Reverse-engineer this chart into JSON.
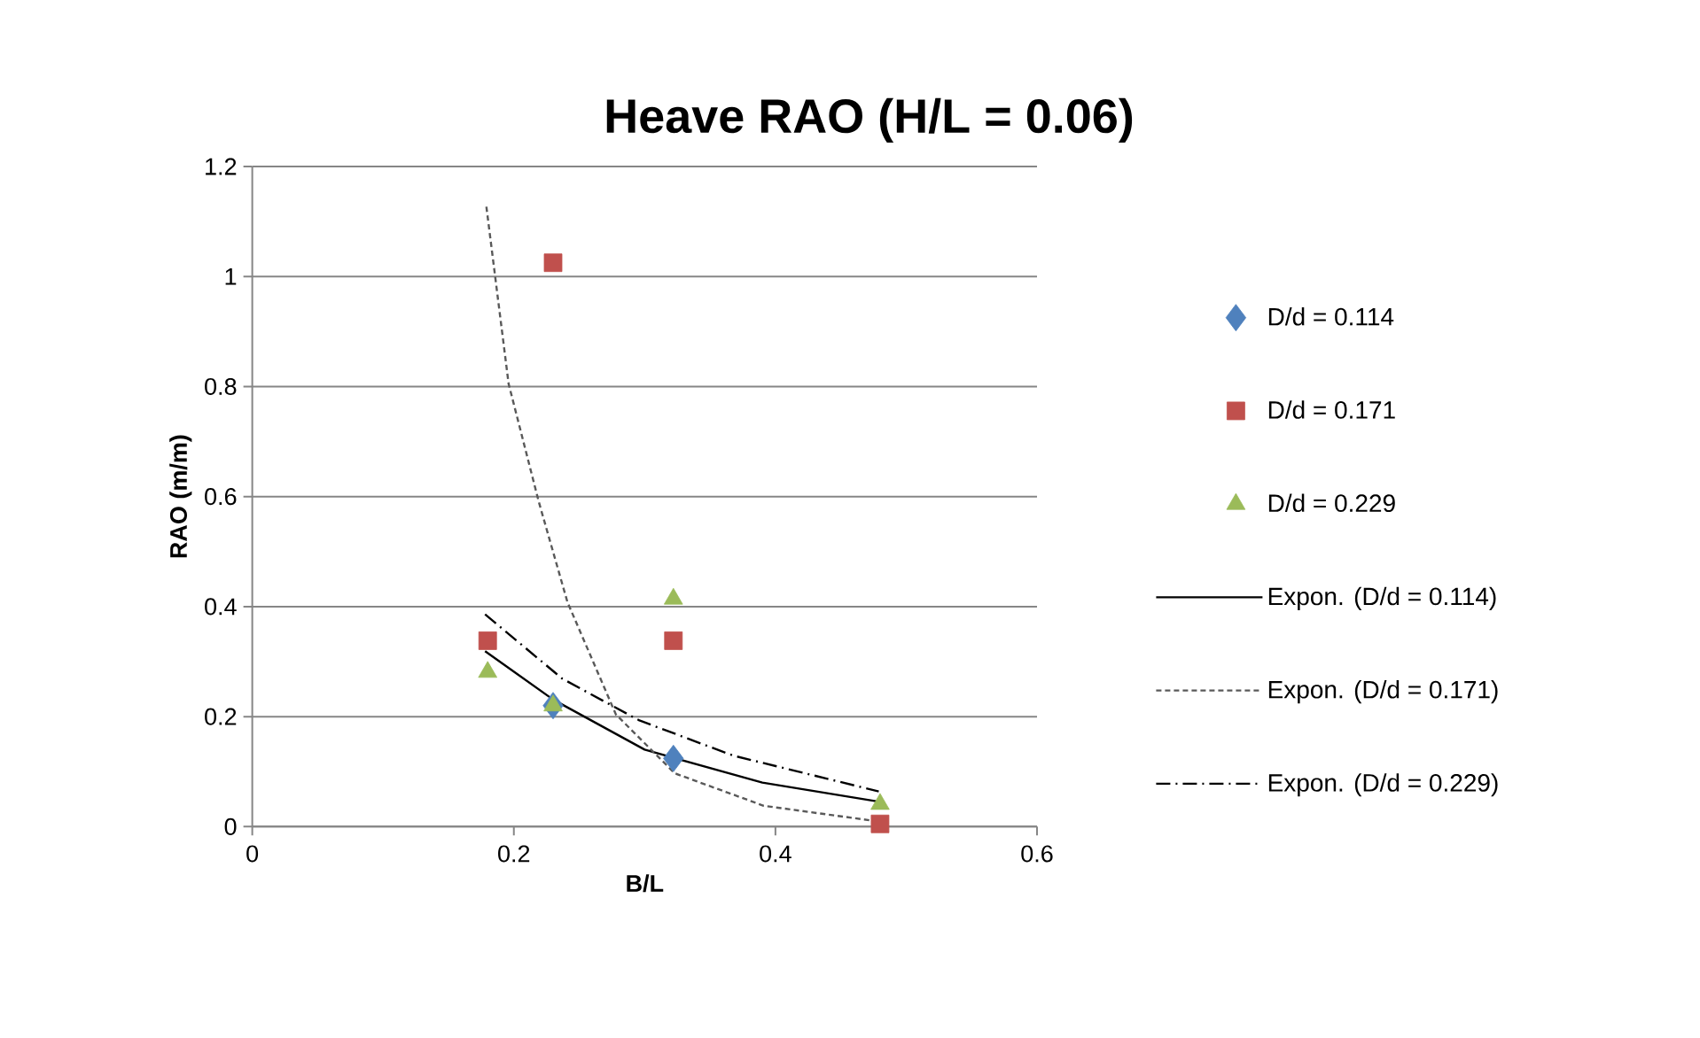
{
  "chart_data": {
    "type": "scatter",
    "title": "Heave RAO (H/L = 0.06)",
    "xlabel": "B/L",
    "ylabel": "RAO (m/m)",
    "xlim": [
      0,
      0.6
    ],
    "ylim": [
      0,
      1.2
    ],
    "xticks": [
      0,
      0.2,
      0.4,
      0.6
    ],
    "yticks": [
      0,
      0.2,
      0.4,
      0.6,
      0.8,
      1,
      1.2
    ],
    "grid": "y",
    "legend": "right",
    "series": [
      {
        "name": "D/d = 0.114",
        "marker": "diamond",
        "color": "#4f81bd",
        "x": [
          0.23,
          0.322
        ],
        "values": [
          0.22,
          0.124
        ]
      },
      {
        "name": "D/d = 0.171",
        "marker": "square",
        "color": "#c0504d",
        "x": [
          0.18,
          0.23,
          0.322,
          0.48
        ],
        "values": [
          0.338,
          1.025,
          0.338,
          0.005
        ]
      },
      {
        "name": "D/d = 0.229",
        "marker": "triangle",
        "color": "#9bbb59",
        "x": [
          0.18,
          0.23,
          0.322,
          0.48
        ],
        "values": [
          0.281,
          0.22,
          0.414,
          0.041
        ]
      },
      {
        "name": "Expon. (D/d = 0.114)",
        "type": "line",
        "marker": "none",
        "line_style": "solid",
        "color": "#000000",
        "x": [
          0.178,
          0.23,
          0.3,
          0.39,
          0.48
        ],
        "values": [
          0.319,
          0.231,
          0.14,
          0.08,
          0.045
        ]
      },
      {
        "name": "Expon. (D/d = 0.171)",
        "type": "line",
        "marker": "none",
        "line_style": "dashed",
        "color": "#595959",
        "x": [
          0.179,
          0.196,
          0.219,
          0.241,
          0.278,
          0.323,
          0.391,
          0.474
        ],
        "values": [
          1.127,
          0.805,
          0.591,
          0.408,
          0.204,
          0.097,
          0.038,
          0.011
        ]
      },
      {
        "name": "Expon. (D/d = 0.229)",
        "type": "line",
        "marker": "none",
        "line_style": "dashdot",
        "color": "#000000",
        "x": [
          0.178,
          0.237,
          0.296,
          0.368,
          0.479
        ],
        "values": [
          0.386,
          0.269,
          0.193,
          0.129,
          0.064
        ]
      }
    ]
  }
}
